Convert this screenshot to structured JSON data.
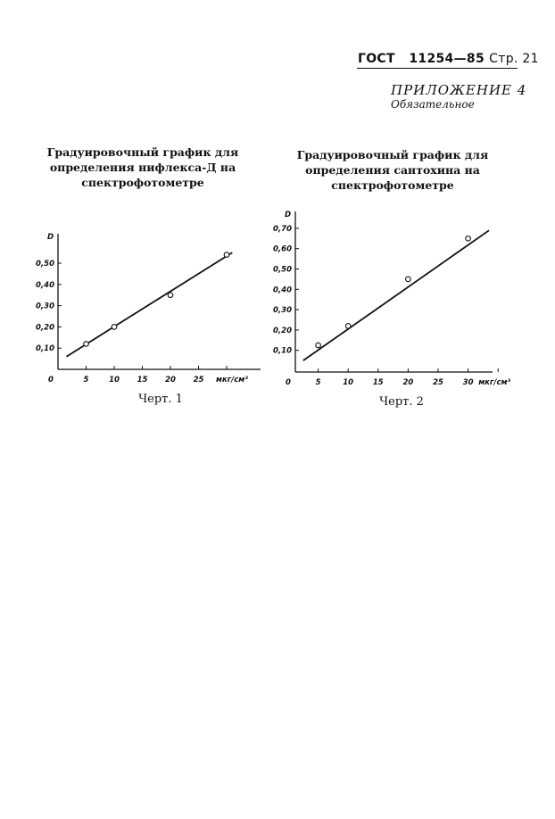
{
  "header": {
    "standard": "ГОСТ",
    "number": "11254—85",
    "page": "Стр. 21"
  },
  "appendix": {
    "title": "ПРИЛОЖЕНИЕ 4",
    "note": "Обязательное"
  },
  "chart_data": [
    {
      "type": "line",
      "title": "Градуировочный график для определения нифлекса-Д на спектрофотометре",
      "caption": "Черт. 1",
      "ylabel": "D",
      "xlabel": "мкг/см³",
      "xticks": [
        "0",
        "5",
        "10",
        "15",
        "20",
        "25"
      ],
      "yticks": [
        "0,10",
        "0,20",
        "0,30",
        "0,40",
        "0,50"
      ],
      "xlim": [
        0,
        35
      ],
      "ylim": [
        0,
        0.6
      ],
      "points": [
        {
          "x": 5,
          "y": 0.12
        },
        {
          "x": 10,
          "y": 0.2
        },
        {
          "x": 20,
          "y": 0.35
        },
        {
          "x": 30,
          "y": 0.54
        }
      ],
      "line": [
        {
          "x": 1.5,
          "y": 0.06
        },
        {
          "x": 31,
          "y": 0.55
        }
      ],
      "grid": false
    },
    {
      "type": "line",
      "title": "Градуировочный график для определения сантохина на спектрофотометре",
      "caption": "Черт. 2",
      "ylabel": "D",
      "xlabel": "мкг/см³",
      "xticks": [
        "0",
        "5",
        "10",
        "15",
        "20",
        "25",
        "30"
      ],
      "yticks": [
        "0,10",
        "0,20",
        "0,30",
        "0,40",
        "0,50",
        "0,60",
        "0,70"
      ],
      "xlim": [
        0,
        35
      ],
      "ylim": [
        0,
        0.75
      ],
      "points": [
        {
          "x": 5,
          "y": 0.125
        },
        {
          "x": 10,
          "y": 0.22
        },
        {
          "x": 20,
          "y": 0.45
        },
        {
          "x": 30,
          "y": 0.65
        }
      ],
      "line": [
        {
          "x": 2.5,
          "y": 0.05
        },
        {
          "x": 33.5,
          "y": 0.69
        }
      ],
      "grid": false
    }
  ]
}
